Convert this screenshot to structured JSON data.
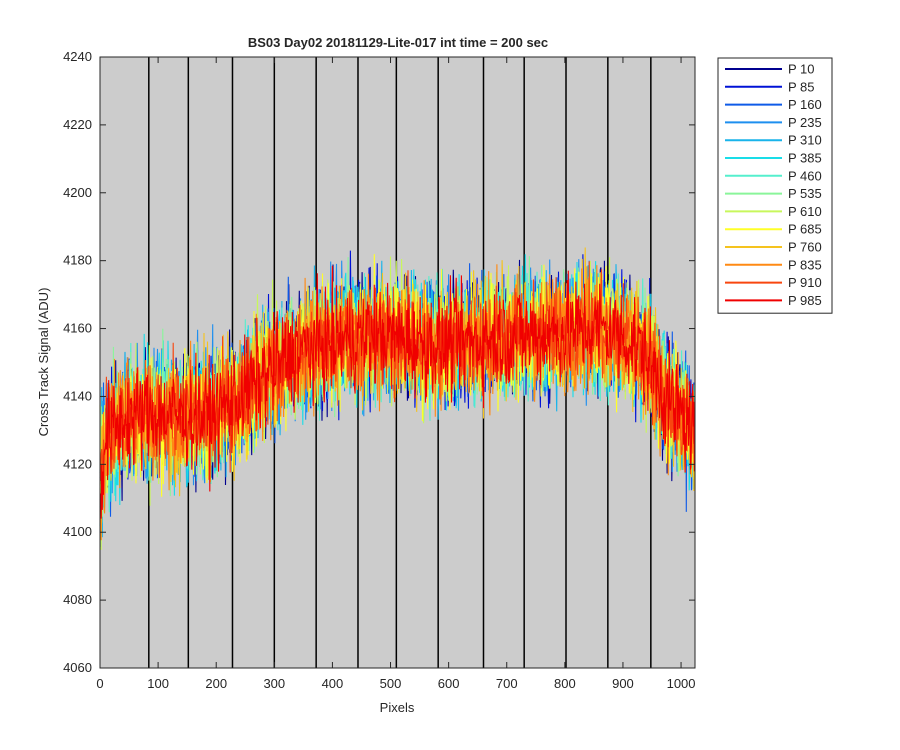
{
  "chart_data": {
    "type": "line",
    "title": "BS03 Day02 20181129-Lite-017 int time = 200 sec",
    "xlabel": "Pixels",
    "ylabel": "Cross Track Signal (ADU)",
    "xlim": [
      0,
      1024
    ],
    "ylim": [
      4060,
      4240
    ],
    "xticks": [
      0,
      100,
      200,
      300,
      400,
      500,
      600,
      700,
      800,
      900,
      1000
    ],
    "yticks": [
      4060,
      4080,
      4100,
      4120,
      4140,
      4160,
      4180,
      4200,
      4220,
      4240
    ],
    "vertical_lines": [
      84,
      152,
      228,
      300,
      372,
      444,
      510,
      582,
      660,
      730,
      802,
      874,
      948
    ],
    "background_color": "#cccccc",
    "legend_position": "outside-right",
    "n_points": 1024,
    "profile": {
      "x": [
        0,
        40,
        100,
        160,
        200,
        240,
        280,
        340,
        400,
        460,
        520,
        580,
        640,
        700,
        760,
        820,
        860,
        900,
        940,
        980,
        1024
      ],
      "y": [
        4125,
        4133,
        4135,
        4134,
        4135,
        4140,
        4146,
        4153,
        4156,
        4158,
        4157,
        4155,
        4156,
        4158,
        4158,
        4160,
        4160,
        4158,
        4152,
        4138,
        4130
      ]
    },
    "noise_amplitude": 17,
    "series": [
      {
        "name": "P 10",
        "color": "#00008f"
      },
      {
        "name": "P 85",
        "color": "#0012d6"
      },
      {
        "name": "P 160",
        "color": "#0f5be8"
      },
      {
        "name": "P 235",
        "color": "#1e8fef"
      },
      {
        "name": "P 310",
        "color": "#19b4ea"
      },
      {
        "name": "P 385",
        "color": "#19dde8"
      },
      {
        "name": "P 460",
        "color": "#55efcd"
      },
      {
        "name": "P 535",
        "color": "#8af59a"
      },
      {
        "name": "P 610",
        "color": "#c8f75c"
      },
      {
        "name": "P 685",
        "color": "#ffff28"
      },
      {
        "name": "P 760",
        "color": "#f5c31e"
      },
      {
        "name": "P 835",
        "color": "#ff8a14"
      },
      {
        "name": "P 910",
        "color": "#f8460f"
      },
      {
        "name": "P 985",
        "color": "#f00000"
      }
    ]
  }
}
